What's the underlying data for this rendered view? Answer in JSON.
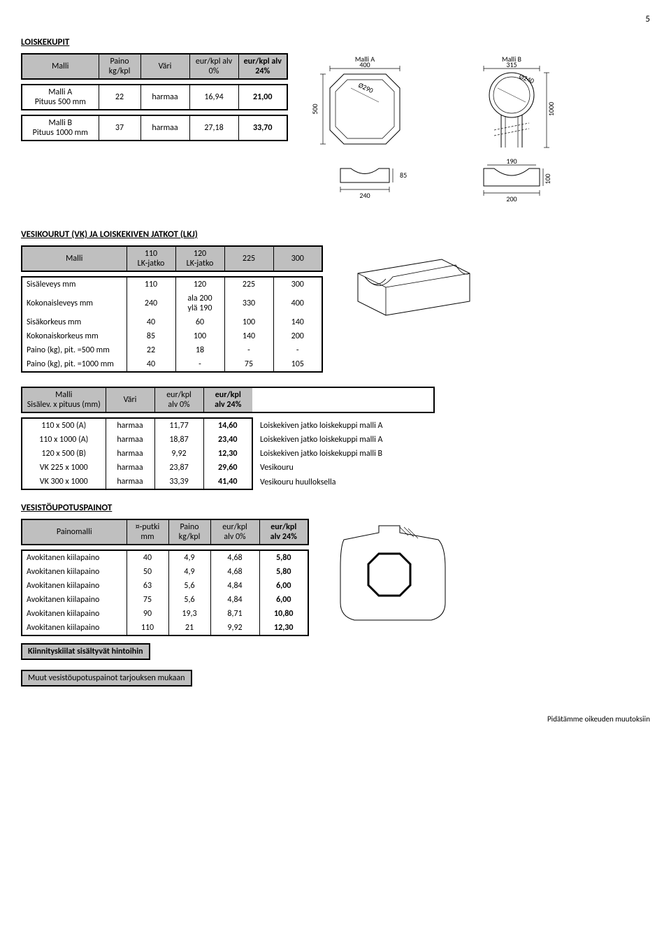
{
  "page_number": "5",
  "sections": {
    "loiskekupit": {
      "title": "LOISKEKUPIT",
      "header": {
        "c1": "Malli",
        "c2": "Paino kg/kpl",
        "c3": "Väri",
        "c4": "eur/kpl alv 0%",
        "c5": "eur/kpl alv 24%"
      },
      "rows": [
        {
          "malli": "Malli A\nPituus 500 mm",
          "paino": "22",
          "vari": "harmaa",
          "p0": "16,94",
          "p24": "21,00"
        },
        {
          "malli": "Malli B\nPituus 1000 mm",
          "paino": "37",
          "vari": "harmaa",
          "p0": "27,18",
          "p24": "33,70"
        }
      ],
      "diagrams": {
        "a": {
          "label": "Malli A",
          "w": "400",
          "d": "Ø290",
          "h": "500",
          "notch_h": "85",
          "notch_w": "240"
        },
        "b": {
          "label": "Malli B",
          "w": "315",
          "d": "Ø240",
          "h": "1000",
          "leg_h": "100",
          "leg_w": "200",
          "gap": "190"
        }
      }
    },
    "vesikourut": {
      "title": "VESIKOURUT (VK) JA LOISKEKIVEN JATKOT (LKJ)",
      "header": {
        "c1": "Malli",
        "c2": "110\nLK-jatko",
        "c3": "120\nLK-jatko",
        "c4": "225",
        "c5": "300"
      },
      "rows": [
        {
          "label": "Sisäleveys mm",
          "v1": "110",
          "v2": "120",
          "v3": "225",
          "v4": "300"
        },
        {
          "label": "Kokonaisleveys mm",
          "v1": "240",
          "v2": "ala 200\nylä 190",
          "v3": "330",
          "v4": "400"
        },
        {
          "label": "Sisäkorkeus mm",
          "v1": "40",
          "v2": "60",
          "v3": "100",
          "v4": "140"
        },
        {
          "label": "Kokonaiskorkeus mm",
          "v1": "85",
          "v2": "100",
          "v3": "140",
          "v4": "200"
        },
        {
          "label": "Paino (kg), pit. =500 mm",
          "v1": "22",
          "v2": "18",
          "v3": "-",
          "v4": "-"
        },
        {
          "label": "Paino (kg), pit. =1000 mm",
          "v1": "40",
          "v2": "-",
          "v3": "75",
          "v4": "105"
        }
      ]
    },
    "pituus": {
      "header": {
        "c1": "Malli\nSisälev. x pituus (mm)",
        "c2": "Väri",
        "c3": "eur/kpl\nalv 0%",
        "c4": "eur/kpl\nalv 24%"
      },
      "rows": [
        {
          "malli": "110 x 500 (A)",
          "vari": "harmaa",
          "p0": "11,77",
          "p24": "14,60",
          "desc": "Loiskekiven jatko loiskekuppi malli A"
        },
        {
          "malli": "110 x 1000 (A)",
          "vari": "harmaa",
          "p0": "18,87",
          "p24": "23,40",
          "desc": "Loiskekiven jatko loiskekuppi malli A"
        },
        {
          "malli": "120 x 500 (B)",
          "vari": "harmaa",
          "p0": "9,92",
          "p24": "12,30",
          "desc": "Loiskekiven jatko loiskekuppi malli B"
        },
        {
          "malli": "VK 225 x 1000",
          "vari": "harmaa",
          "p0": "23,87",
          "p24": "29,60",
          "desc": "Vesikouru"
        },
        {
          "malli": "VK 300 x 1000",
          "vari": "harmaa",
          "p0": "33,39",
          "p24": "41,40",
          "desc": "Vesikouru huulloksella"
        }
      ]
    },
    "painot": {
      "title": "VESISTÖUPOTUSPAINOT",
      "header": {
        "c1": "Painomalli",
        "c2": "¤-putki\nmm",
        "c3": "Paino\nkg/kpl",
        "c4": "eur/kpl\nalv 0%",
        "c5": "eur/kpl\nalv 24%"
      },
      "rows": [
        {
          "malli": "Avokitanen kiilapaino",
          "putki": "40",
          "paino": "4,9",
          "p0": "4,68",
          "p24": "5,80"
        },
        {
          "malli": "Avokitanen kiilapaino",
          "putki": "50",
          "paino": "4,9",
          "p0": "4,68",
          "p24": "5,80"
        },
        {
          "malli": "Avokitanen kiilapaino",
          "putki": "63",
          "paino": "5,6",
          "p0": "4,84",
          "p24": "6,00"
        },
        {
          "malli": "Avokitanen kiilapaino",
          "putki": "75",
          "paino": "5,6",
          "p0": "4,84",
          "p24": "6,00"
        },
        {
          "malli": "Avokitanen kiilapaino",
          "putki": "90",
          "paino": "19,3",
          "p0": "8,71",
          "p24": "10,80"
        },
        {
          "malli": "Avokitanen kiilapaino",
          "putki": "110",
          "paino": "21",
          "p0": "9,92",
          "p24": "12,30"
        }
      ],
      "note1": "Kiinnityskiilat sisältyvät hintoihin",
      "note2": "Muut vesistöupotuspainot tarjouksen mukaan"
    }
  },
  "footer": "Pidätämme oikeuden muutoksiin",
  "colors": {
    "hdr_bg": "#bfbfbf",
    "border": "#000000",
    "text": "#000000"
  }
}
